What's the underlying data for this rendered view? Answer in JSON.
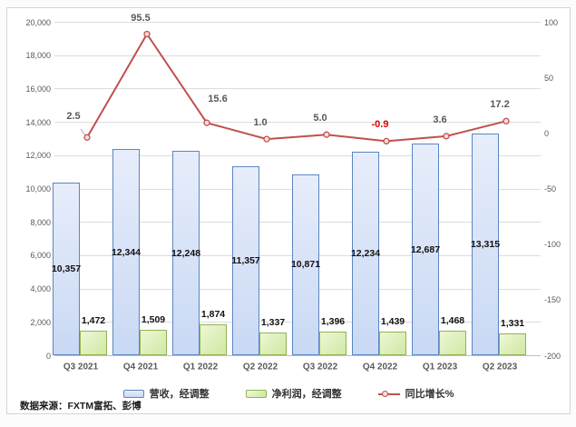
{
  "source_note": "数据来源：FXTM富拓、彭博",
  "colors": {
    "revenue_fill_top": "#e7edfb",
    "revenue_fill_bottom": "#c9d9f4",
    "revenue_border": "#5b86c0",
    "profit_fill_top": "#edf8d6",
    "profit_fill_bottom": "#cfe8a2",
    "profit_border": "#94b254",
    "line": "#c0504d",
    "marker_fill": "#f7dfde",
    "negative_label": "#e00000",
    "axis_text": "#595959",
    "grid": "#dcdcdc"
  },
  "chart_data": {
    "type": "combo",
    "categories": [
      "Q3 2021",
      "Q4 2021",
      "Q1 2022",
      "Q2 2022",
      "Q3 2022",
      "Q4 2022",
      "Q1 2023",
      "Q2 2023"
    ],
    "series": [
      {
        "name": "营收，经调整",
        "type": "bar",
        "axis": "left",
        "values": [
          10357,
          12344,
          12248,
          11357,
          10871,
          12234,
          12687,
          13315
        ]
      },
      {
        "name": "净利润，经调整",
        "type": "bar",
        "axis": "left",
        "values": [
          1472,
          1509,
          1874,
          1337,
          1396,
          1439,
          1468,
          1331
        ]
      },
      {
        "name": "同比增长%",
        "type": "line",
        "axis": "right",
        "values": [
          2.5,
          95.5,
          15.6,
          1.0,
          5.0,
          -0.9,
          3.6,
          17.2
        ]
      }
    ],
    "left_axis": {
      "min": 0,
      "max": 20000,
      "step": 2000
    },
    "right_axis": {
      "min": -200,
      "max": 100,
      "step": 50
    },
    "legend_position": "bottom",
    "grid": true
  }
}
